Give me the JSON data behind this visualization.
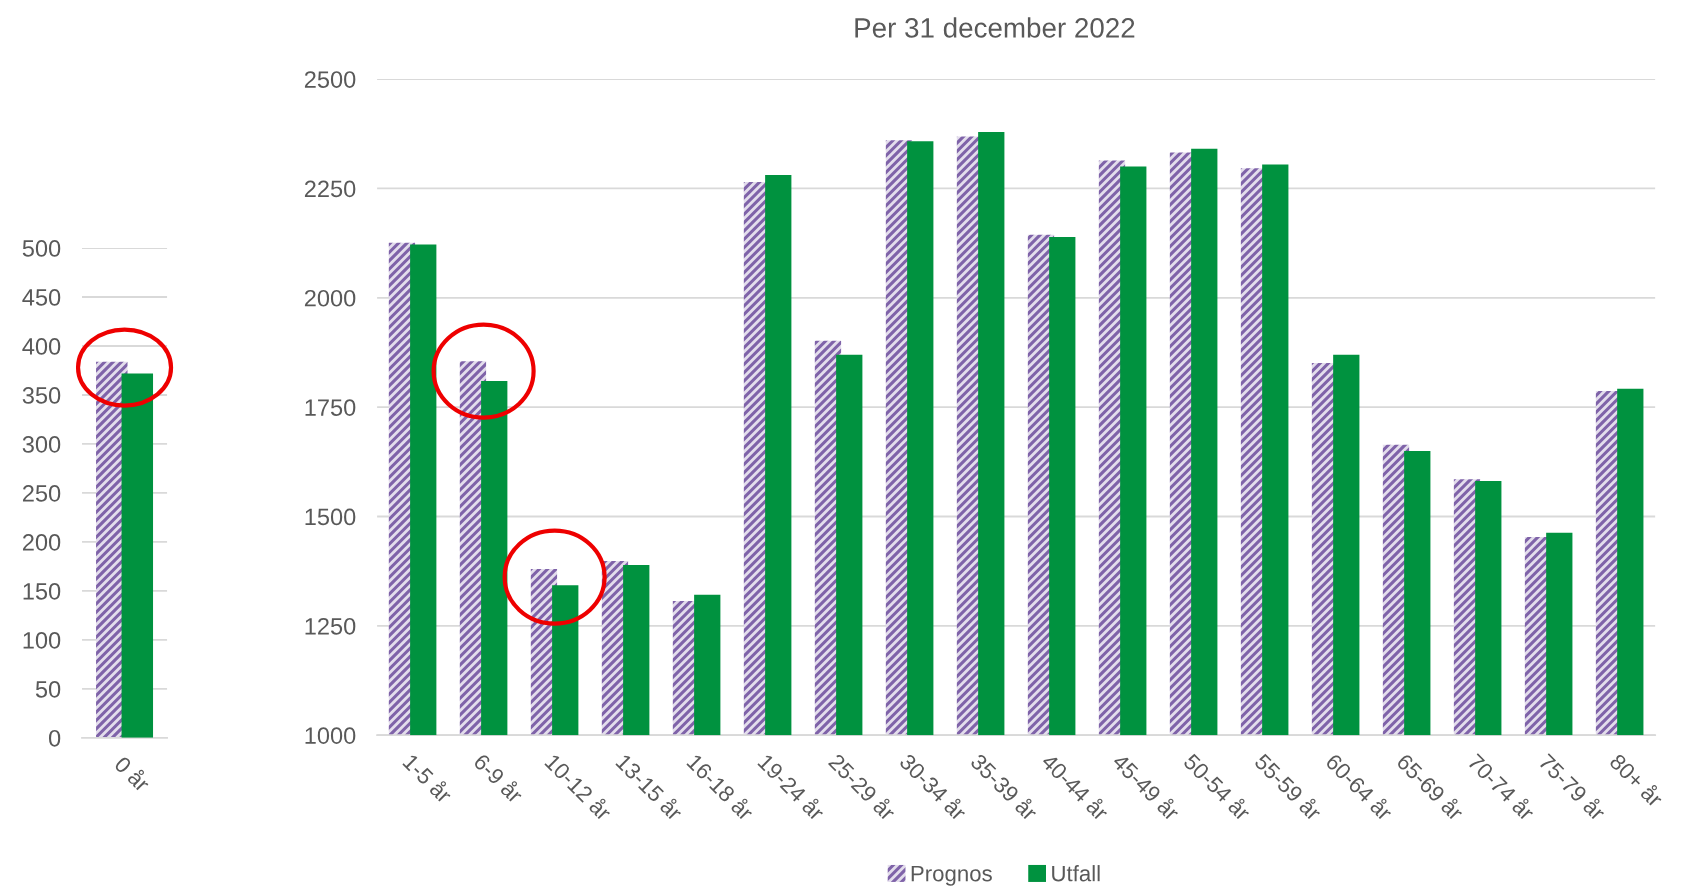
{
  "chart_data": [
    {
      "type": "bar",
      "categories": [
        "0 år"
      ],
      "series": [
        {
          "color": "#7f63a9",
          "values": [
            384
          ]
        },
        {
          "color": "#00923f",
          "values": [
            372
          ]
        }
      ],
      "ylim": [
        0,
        500
      ],
      "yticks": [
        0,
        50,
        100,
        150,
        200,
        250,
        300,
        350,
        400,
        450,
        500
      ],
      "grid": "y"
    },
    {
      "type": "bar",
      "title": "Per 31 december 2022",
      "categories": [
        "1-5 år",
        "6-9 år",
        "10-12 år",
        "13-15 år",
        "16-18 år",
        "19-24 år",
        "25-29 år",
        "30-34 år",
        "35-39 år",
        "40-44 år",
        "45-49 år",
        "50-54 år",
        "55-59 år",
        "60-64 år",
        "65-69 år",
        "70-74 år",
        "75-79 år",
        "80+ år"
      ],
      "series": [
        {
          "name": "Prognos",
          "color": "#7f63a9",
          "values": [
            2126,
            1855,
            1380,
            1398,
            1307,
            2265,
            1902,
            2360,
            2369,
            2144,
            2314,
            2332,
            2296,
            1851,
            1664,
            1585,
            1453,
            1787
          ]
        },
        {
          "name": "Utfall",
          "color": "#00923f",
          "values": [
            2122,
            1810,
            1343,
            1389,
            1321,
            2281,
            1870,
            2358,
            2379,
            2139,
            2300,
            2341,
            2305,
            1870,
            1650,
            1581,
            1463,
            1792
          ]
        }
      ],
      "ylim": [
        1000,
        2500
      ],
      "yticks": [
        1000,
        1250,
        1500,
        1750,
        2000,
        2250,
        2500
      ],
      "grid": "y",
      "legend": "bottom"
    }
  ]
}
